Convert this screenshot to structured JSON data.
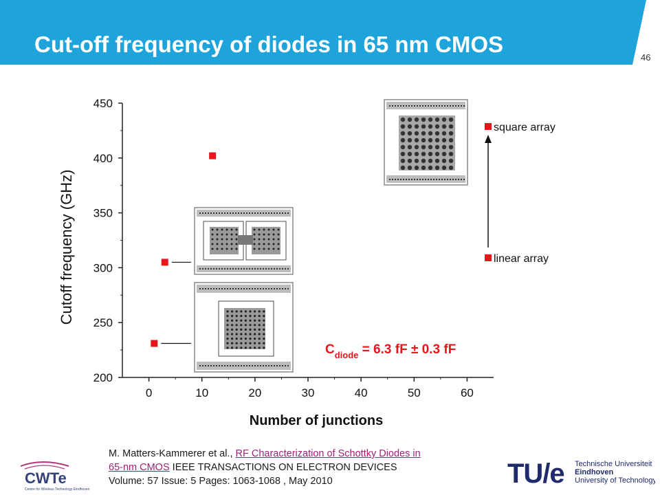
{
  "slide": {
    "title": "Cut-off frequency of diodes in 65 nm CMOS",
    "page_number": "46",
    "header_color": "#1ea3db"
  },
  "chart_data": {
    "type": "scatter",
    "xlabel": "Number of junctions",
    "ylabel": "Cutoff frequency (GHz)",
    "xlim": [
      -5,
      65
    ],
    "ylim": [
      200,
      450
    ],
    "x_ticks": [
      "0",
      "10",
      "20",
      "30",
      "40",
      "50",
      "60"
    ],
    "y_ticks": [
      "200",
      "250",
      "300",
      "350",
      "400",
      "450"
    ],
    "points": [
      {
        "x": 1,
        "y": 231
      },
      {
        "x": 3,
        "y": 305
      },
      {
        "x": 12,
        "y": 402
      }
    ],
    "marker_color": "#e8161b",
    "legend": [
      {
        "label": "square array"
      },
      {
        "label": "linear array"
      }
    ],
    "annotation": {
      "prefix": "C",
      "subscript": "diode",
      "rest": " = 6.3 fF ± 0.3 fF",
      "color": "#e8161b"
    }
  },
  "citation": {
    "authors": "M. Matters-Kammerer et al.,",
    "link_line1": "RF Characterization of Schottky Diodes in",
    "link_line2": "65-nm CMOS",
    "journal": " IEEE TRANSACTIONS ON ELECTRON DEVICES",
    "details": "Volume: 57    Issue: 5    Pages: 1063-1068 , May 2010"
  },
  "logos": {
    "cwte": "CWTe",
    "cwte_sub": "Centre for Wireless Technology Eindhoven",
    "tue_mark": "TU/e",
    "tue_line1": "Technische Universiteit",
    "tue_line2": "Eindhoven",
    "tue_line3": "University of Technology"
  }
}
